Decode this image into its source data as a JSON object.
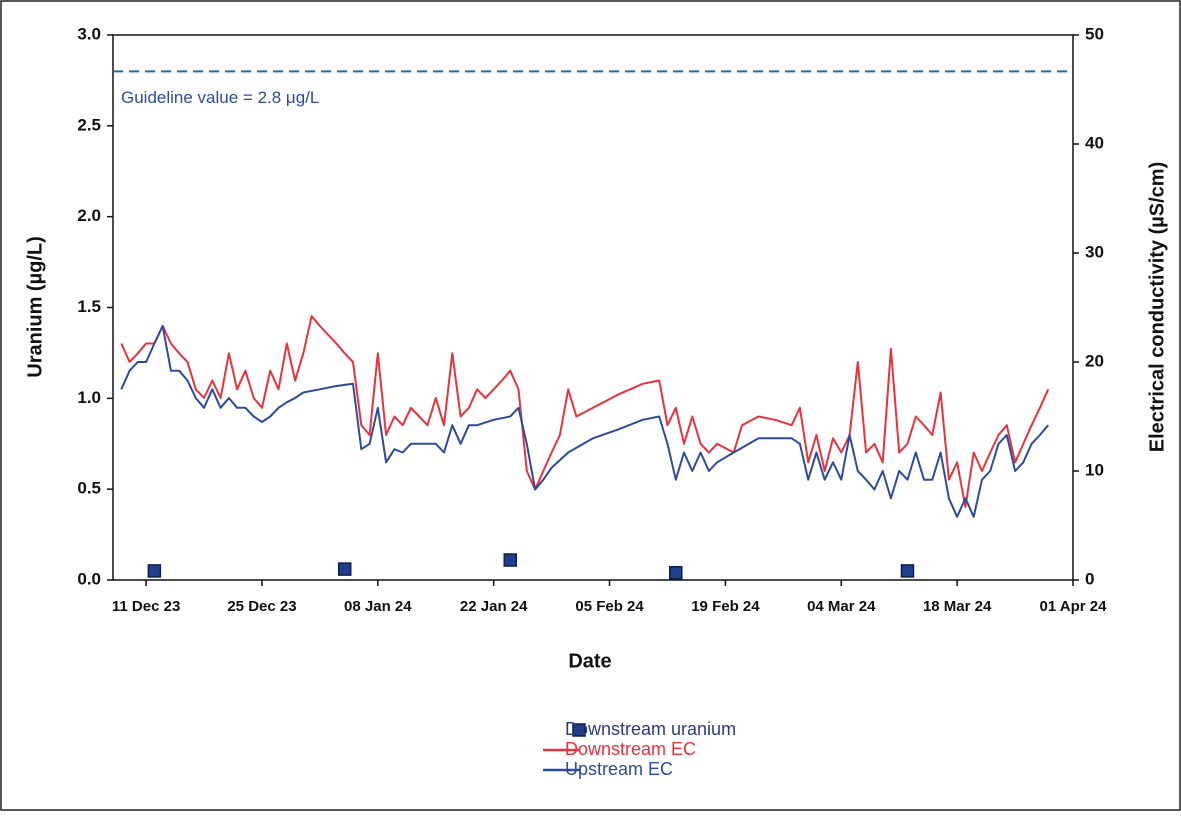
{
  "chart_data": {
    "type": "line",
    "x_label": "Date",
    "y_label": "Uranium (µg/L)",
    "y2_label": "Electrical conductivity (µS/cm)",
    "xlim": [
      "2023-12-07",
      "2024-04-01"
    ],
    "xticks": [
      {
        "value": "2023-12-11",
        "label": "11 Dec 23"
      },
      {
        "value": "2023-12-25",
        "label": "25 Dec 23"
      },
      {
        "value": "2024-01-08",
        "label": "08 Jan 24"
      },
      {
        "value": "2024-01-22",
        "label": "22 Jan 24"
      },
      {
        "value": "2024-02-05",
        "label": "05 Feb 24"
      },
      {
        "value": "2024-02-19",
        "label": "19 Feb 24"
      },
      {
        "value": "2024-03-04",
        "label": "04 Mar 24"
      },
      {
        "value": "2024-03-18",
        "label": "18 Mar 24"
      },
      {
        "value": "2024-04-01",
        "label": "01 Apr 24"
      }
    ],
    "ylim": [
      0,
      3
    ],
    "yticks": [
      {
        "value": 0,
        "label": "0.0"
      },
      0.5,
      {
        "value": 1,
        "label": "1.0"
      },
      1.5,
      {
        "value": 2,
        "label": "2.0"
      },
      2.5,
      {
        "value": 3,
        "label": "3.0"
      }
    ],
    "y2lim": [
      0,
      50
    ],
    "y2ticks": [
      0,
      10,
      20,
      30,
      40,
      50
    ],
    "guideline": {
      "value": 2.8,
      "label": "Guideline value = 2.8 μg/L",
      "color": "#1f6aa8"
    },
    "series": [
      {
        "name": "Downstream uranium",
        "type": "scatter",
        "axis": "y",
        "color": "#1f3f8f",
        "x": [
          "2023-12-12",
          "2024-01-04",
          "2024-01-24",
          "2024-02-13",
          "2024-03-12"
        ],
        "values": [
          0.05,
          0.06,
          0.11,
          0.04,
          0.05
        ]
      },
      {
        "name": "Downstream EC",
        "type": "line",
        "axis": "y2",
        "color": "#e8323c",
        "x": [
          "2023-12-08",
          "2023-12-09",
          "2023-12-10",
          "2023-12-11",
          "2023-12-12",
          "2023-12-13",
          "2023-12-14",
          "2023-12-15",
          "2023-12-16",
          "2023-12-17",
          "2023-12-18",
          "2023-12-19",
          "2023-12-20",
          "2023-12-21",
          "2023-12-22",
          "2023-12-23",
          "2023-12-24",
          "2023-12-25",
          "2023-12-26",
          "2023-12-27",
          "2023-12-28",
          "2023-12-29",
          "2023-12-30",
          "2023-12-31",
          "2024-01-01",
          "2024-01-02",
          "2024-01-03",
          "2024-01-04",
          "2024-01-05",
          "2024-01-06",
          "2024-01-07",
          "2024-01-08",
          "2024-01-09",
          "2024-01-10",
          "2024-01-11",
          "2024-01-12",
          "2024-01-13",
          "2024-01-14",
          "2024-01-15",
          "2024-01-16",
          "2024-01-17",
          "2024-01-18",
          "2024-01-19",
          "2024-01-20",
          "2024-01-21",
          "2024-01-22",
          "2024-01-23",
          "2024-01-24",
          "2024-01-25",
          "2024-01-26",
          "2024-01-27",
          "2024-01-28",
          "2024-01-29",
          "2024-01-30",
          "2024-01-31",
          "2024-02-01",
          "2024-02-03",
          "2024-02-06",
          "2024-02-09",
          "2024-02-11",
          "2024-02-12",
          "2024-02-13",
          "2024-02-14",
          "2024-02-15",
          "2024-02-16",
          "2024-02-17",
          "2024-02-18",
          "2024-02-20",
          "2024-02-21",
          "2024-02-23",
          "2024-02-25",
          "2024-02-27",
          "2024-02-28",
          "2024-02-29",
          "2024-03-01",
          "2024-03-02",
          "2024-03-03",
          "2024-03-04",
          "2024-03-05",
          "2024-03-06",
          "2024-03-07",
          "2024-03-08",
          "2024-03-09",
          "2024-03-10",
          "2024-03-11",
          "2024-03-12",
          "2024-03-13",
          "2024-03-14",
          "2024-03-15",
          "2024-03-16",
          "2024-03-17",
          "2024-03-18",
          "2024-03-19",
          "2024-03-20",
          "2024-03-21",
          "2024-03-22",
          "2024-03-23",
          "2024-03-24",
          "2024-03-25",
          "2024-03-26",
          "2024-03-27",
          "2024-03-28",
          "2024-03-29"
        ],
        "values": [
          21.7,
          20,
          20.8,
          21.7,
          21.7,
          23.3,
          21.7,
          20.8,
          20,
          17.5,
          16.7,
          18.3,
          16.7,
          20.8,
          17.5,
          19.2,
          16.7,
          15.8,
          19.2,
          17.5,
          21.7,
          18.3,
          20.8,
          24.2,
          23.3,
          22.5,
          21.7,
          20.8,
          20,
          14.2,
          13.3,
          20.8,
          13.3,
          15,
          14.2,
          15.8,
          15,
          14.2,
          16.7,
          14.2,
          20.8,
          15,
          15.8,
          17.5,
          16.7,
          17.5,
          18.3,
          19.2,
          17.5,
          10,
          8.3,
          10,
          11.7,
          13.3,
          17.5,
          15,
          15.8,
          17,
          18,
          18.3,
          14.2,
          15.8,
          12.5,
          15,
          12.5,
          11.7,
          12.5,
          11.7,
          14.2,
          15,
          14.7,
          14.2,
          15.8,
          10.8,
          13.3,
          10,
          13,
          11.7,
          13.3,
          20,
          11.7,
          12.5,
          10.8,
          21.2,
          11.7,
          12.5,
          15,
          14.2,
          13.3,
          17.2,
          9.2,
          10.8,
          6.7,
          11.7,
          10,
          11.7,
          13.3,
          14.2,
          10.8,
          12.5,
          14.2,
          15.8,
          17.5
        ]
      },
      {
        "name": "Upstream EC",
        "type": "line",
        "axis": "y2",
        "color": "#2e4aa0",
        "x": [
          "2023-12-08",
          "2023-12-09",
          "2023-12-10",
          "2023-12-11",
          "2023-12-12",
          "2023-12-13",
          "2023-12-14",
          "2023-12-15",
          "2023-12-16",
          "2023-12-17",
          "2023-12-18",
          "2023-12-19",
          "2023-12-20",
          "2023-12-21",
          "2023-12-22",
          "2023-12-23",
          "2023-12-24",
          "2023-12-25",
          "2023-12-26",
          "2023-12-27",
          "2023-12-28",
          "2023-12-29",
          "2023-12-30",
          "2024-01-01",
          "2024-01-03",
          "2024-01-05",
          "2024-01-06",
          "2024-01-07",
          "2024-01-08",
          "2024-01-09",
          "2024-01-10",
          "2024-01-11",
          "2024-01-12",
          "2024-01-13",
          "2024-01-15",
          "2024-01-16",
          "2024-01-17",
          "2024-01-18",
          "2024-01-19",
          "2024-01-20",
          "2024-01-22",
          "2024-01-24",
          "2024-01-25",
          "2024-01-26",
          "2024-01-27",
          "2024-01-28",
          "2024-01-29",
          "2024-01-31",
          "2024-02-03",
          "2024-02-06",
          "2024-02-09",
          "2024-02-11",
          "2024-02-12",
          "2024-02-13",
          "2024-02-14",
          "2024-02-15",
          "2024-02-16",
          "2024-02-17",
          "2024-02-18",
          "2024-02-20",
          "2024-02-23",
          "2024-02-27",
          "2024-02-28",
          "2024-02-29",
          "2024-03-01",
          "2024-03-02",
          "2024-03-03",
          "2024-03-04",
          "2024-03-05",
          "2024-03-06",
          "2024-03-07",
          "2024-03-08",
          "2024-03-09",
          "2024-03-10",
          "2024-03-11",
          "2024-03-12",
          "2024-03-13",
          "2024-03-14",
          "2024-03-15",
          "2024-03-16",
          "2024-03-17",
          "2024-03-18",
          "2024-03-19",
          "2024-03-20",
          "2024-03-21",
          "2024-03-22",
          "2024-03-23",
          "2024-03-24",
          "2024-03-25",
          "2024-03-26",
          "2024-03-27",
          "2024-03-28",
          "2024-03-29"
        ],
        "values": [
          17.5,
          19.2,
          20,
          20,
          21.7,
          23.3,
          19.2,
          19.2,
          18.3,
          16.7,
          15.8,
          17.5,
          15.8,
          16.7,
          15.8,
          15.8,
          15,
          14.5,
          15,
          15.8,
          16.3,
          16.7,
          17.2,
          17.5,
          17.8,
          18,
          12,
          12.5,
          15.8,
          10.8,
          12,
          11.7,
          12.5,
          12.5,
          12.5,
          11.7,
          14.2,
          12.5,
          14.2,
          14.2,
          14.7,
          15,
          15.8,
          12.5,
          8.3,
          9.2,
          10.3,
          11.7,
          13,
          13.8,
          14.7,
          15,
          12.5,
          9.2,
          11.7,
          10,
          11.7,
          10,
          10.8,
          11.7,
          13,
          13,
          12.5,
          9.2,
          11.7,
          9.2,
          10.8,
          9.2,
          13.3,
          10,
          9.2,
          8.3,
          10,
          7.5,
          10,
          9.2,
          11.7,
          9.2,
          9.2,
          11.7,
          7.5,
          5.8,
          7.5,
          5.8,
          9.2,
          10,
          12.5,
          13.3,
          10,
          10.8,
          12.5,
          13.3,
          14.2
        ]
      }
    ]
  }
}
